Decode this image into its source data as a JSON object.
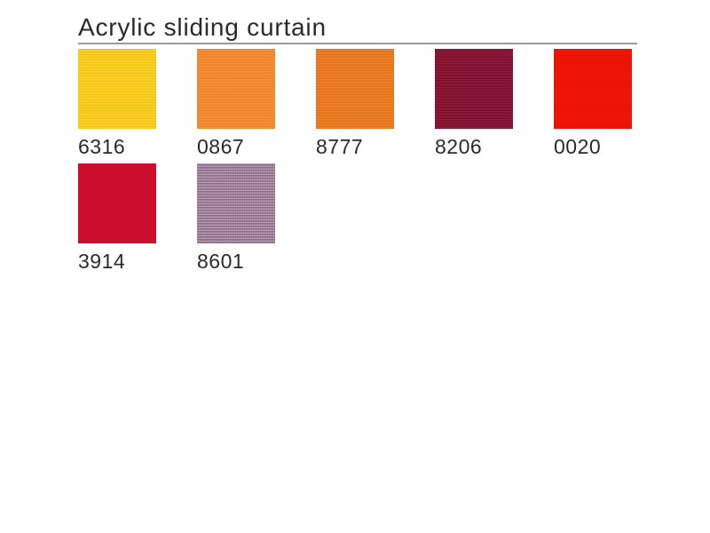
{
  "page": {
    "title": "Acrylic sliding curtain",
    "colors": {
      "background": "#ffffff",
      "text": "#2a2a2a",
      "rule": "#9b9b9b"
    }
  },
  "swatches": [
    {
      "code": "6316",
      "color": "#fcce1b",
      "texture": "ribbed"
    },
    {
      "code": "0867",
      "color": "#f68a2e",
      "texture": "ribbed"
    },
    {
      "code": "8777",
      "color": "#ee7a1f",
      "texture": "ribbed"
    },
    {
      "code": "8206",
      "color": "#861230",
      "texture": "ribbed"
    },
    {
      "code": "0020",
      "color": "#ee1506",
      "texture": "smooth"
    },
    {
      "code": "3914",
      "color": "#ce0e2d",
      "texture": "smooth"
    },
    {
      "code": "8601",
      "color": "#a17d9b",
      "texture": "weave"
    }
  ]
}
